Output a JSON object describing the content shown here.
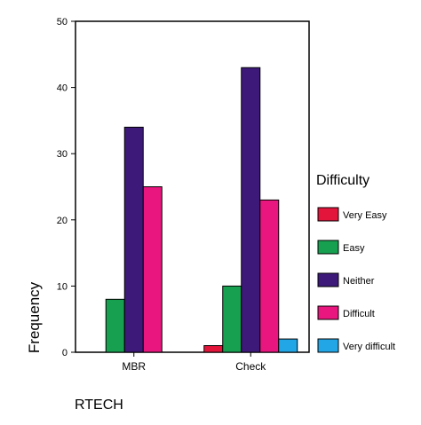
{
  "chart_data": {
    "type": "bar",
    "categories": [
      "MBR",
      "Check"
    ],
    "series": [
      {
        "name": "Very Easy",
        "values": [
          0,
          1
        ],
        "color": "#e3153b"
      },
      {
        "name": "Easy",
        "values": [
          8,
          10
        ],
        "color": "#16a050"
      },
      {
        "name": "Neither",
        "values": [
          34,
          43
        ],
        "color": "#3d1a7a"
      },
      {
        "name": "Difficult",
        "values": [
          25,
          23
        ],
        "color": "#e8167e"
      },
      {
        "name": "Very difficult",
        "values": [
          0,
          2
        ],
        "color": "#23a6e6"
      }
    ],
    "title": "",
    "xlabel": "RTECH",
    "ylabel": "Frequency",
    "ylim": [
      0,
      50
    ],
    "yticks": [
      0,
      10,
      20,
      30,
      40,
      50
    ],
    "legend_title": "Difficulty",
    "legend_position": "right",
    "grid": false
  }
}
